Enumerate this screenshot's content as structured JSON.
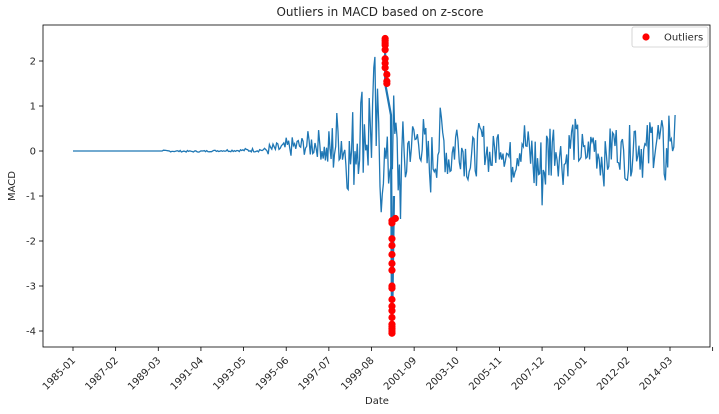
{
  "chart_data": {
    "type": "line",
    "title": "Outliers in MACD based on z-score",
    "xlabel": "Date",
    "ylabel": "MACD",
    "ylim": [
      -4.4,
      2.8
    ],
    "y_ticks": [
      2,
      1,
      0,
      -1,
      -2,
      -3,
      -4
    ],
    "x_tick_labels": [
      "1985-01",
      "1987-02",
      "1989-03",
      "1991-04",
      "1993-05",
      "1995-06",
      "1997-07",
      "1999-08",
      "2001-09",
      "2003-10",
      "2005-11",
      "2007-12",
      "2010-01",
      "2012-02",
      "2014-03"
    ],
    "grid": false,
    "legend_position": "top-right",
    "colors": {
      "line": "#1f77b4",
      "outliers": "#ff0000"
    },
    "series": [
      {
        "kind": "line",
        "x": [
          "1985-01",
          "1986-06",
          "1988-01",
          "1989-06",
          "1991-01",
          "1992-06",
          "1993-06",
          "1994-06",
          "1995-06",
          "1996-06",
          "1997-01",
          "1997-07",
          "1998-01",
          "1998-07",
          "1999-01",
          "1999-06",
          "1999-10",
          "2000-01",
          "2000-03",
          "2000-06",
          "2000-09",
          "2001-01",
          "2001-06",
          "2002-01",
          "2002-06",
          "2003-01",
          "2003-06",
          "2003-10",
          "2004-06",
          "2005-01",
          "2005-06",
          "2005-11",
          "2006-06",
          "2007-01",
          "2007-06",
          "2007-12",
          "2008-06",
          "2009-01",
          "2009-06",
          "2010-01",
          "2010-06",
          "2011-01",
          "2011-06",
          "2012-02",
          "2012-06",
          "2013-01",
          "2013-06",
          "2014-01",
          "2014-03",
          "2014-06"
        ],
        "values": [
          0.0,
          0.0,
          0.0,
          0.0,
          -0.02,
          0.02,
          0.03,
          0.05,
          0.15,
          0.25,
          0.35,
          -0.3,
          0.8,
          -0.6,
          1.2,
          0.9,
          1.6,
          -1.2,
          -0.4,
          -0.8,
          0.5,
          -1.3,
          0.3,
          0.6,
          -0.8,
          0.7,
          -0.5,
          0.6,
          -0.6,
          0.5,
          -0.4,
          0.5,
          -0.5,
          0.6,
          -0.4,
          -1.0,
          0.5,
          -0.6,
          0.6,
          -0.3,
          0.4,
          -0.6,
          0.5,
          -0.5,
          0.7,
          -0.3,
          0.8,
          -0.5,
          1.0,
          0.8
        ]
      },
      {
        "kind": "scatter",
        "name": "Outliers",
        "x": [
          "2000-04",
          "2000-04",
          "2000-04",
          "2000-04",
          "2000-04",
          "2000-04",
          "2000-04",
          "2000-04",
          "2000-05",
          "2000-05",
          "2000-05",
          "2000-08",
          "2000-08",
          "2000-08",
          "2000-08",
          "2000-08",
          "2000-08",
          "2000-08",
          "2000-08",
          "2000-08",
          "2000-08",
          "2000-08",
          "2000-08",
          "2000-08",
          "2000-08",
          "2000-08",
          "2000-08",
          "2000-08",
          "2000-08",
          "2000-10"
        ],
        "values": [
          2.5,
          2.45,
          2.4,
          2.35,
          2.25,
          2.05,
          1.95,
          1.85,
          1.7,
          1.55,
          1.5,
          -1.55,
          -1.6,
          -1.95,
          -2.1,
          -2.3,
          -2.5,
          -2.65,
          -3.0,
          -3.05,
          -3.3,
          -3.45,
          -3.55,
          -3.7,
          -3.85,
          -3.9,
          -3.95,
          -4.0,
          -4.05,
          -1.5
        ]
      }
    ]
  }
}
